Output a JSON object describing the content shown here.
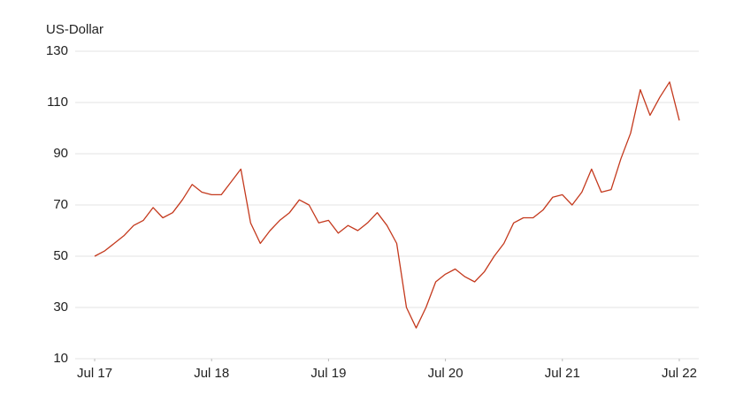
{
  "chart_data": {
    "type": "line",
    "y_label": "US-Dollar",
    "x": [
      "2017-07",
      "2017-08",
      "2017-09",
      "2017-10",
      "2017-11",
      "2017-12",
      "2018-01",
      "2018-02",
      "2018-03",
      "2018-04",
      "2018-05",
      "2018-06",
      "2018-07",
      "2018-08",
      "2018-09",
      "2018-10",
      "2018-11",
      "2018-12",
      "2019-01",
      "2019-02",
      "2019-03",
      "2019-04",
      "2019-05",
      "2019-06",
      "2019-07",
      "2019-08",
      "2019-09",
      "2019-10",
      "2019-11",
      "2019-12",
      "2020-01",
      "2020-02",
      "2020-03",
      "2020-04",
      "2020-05",
      "2020-06",
      "2020-07",
      "2020-08",
      "2020-09",
      "2020-10",
      "2020-11",
      "2020-12",
      "2021-01",
      "2021-02",
      "2021-03",
      "2021-04",
      "2021-05",
      "2021-06",
      "2021-07",
      "2021-08",
      "2021-09",
      "2021-10",
      "2021-11",
      "2021-12",
      "2022-01",
      "2022-02",
      "2022-03",
      "2022-04",
      "2022-05",
      "2022-06",
      "2022-07"
    ],
    "values": [
      50,
      52,
      55,
      58,
      62,
      64,
      69,
      65,
      67,
      72,
      78,
      75,
      74,
      74,
      79,
      84,
      63,
      55,
      60,
      64,
      67,
      72,
      70,
      63,
      64,
      59,
      62,
      60,
      63,
      67,
      62,
      55,
      30,
      22,
      30,
      40,
      43,
      45,
      42,
      40,
      44,
      50,
      55,
      63,
      65,
      65,
      68,
      73,
      74,
      70,
      75,
      84,
      75,
      76,
      88,
      98,
      115,
      105,
      112,
      118,
      103
    ],
    "color": "#c4391d",
    "xlim": [
      "2017-05",
      "2022-09"
    ],
    "xticks": [
      {
        "value": "2017-07",
        "label": "Jul 17"
      },
      {
        "value": "2018-07",
        "label": "Jul 18"
      },
      {
        "value": "2019-07",
        "label": "Jul 19"
      },
      {
        "value": "2020-07",
        "label": "Jul 20"
      },
      {
        "value": "2021-07",
        "label": "Jul 21"
      },
      {
        "value": "2022-07",
        "label": "Jul 22"
      }
    ],
    "ylim": [
      10,
      130
    ],
    "yticks": [
      10,
      30,
      50,
      70,
      90,
      110,
      130
    ],
    "grid": true
  }
}
